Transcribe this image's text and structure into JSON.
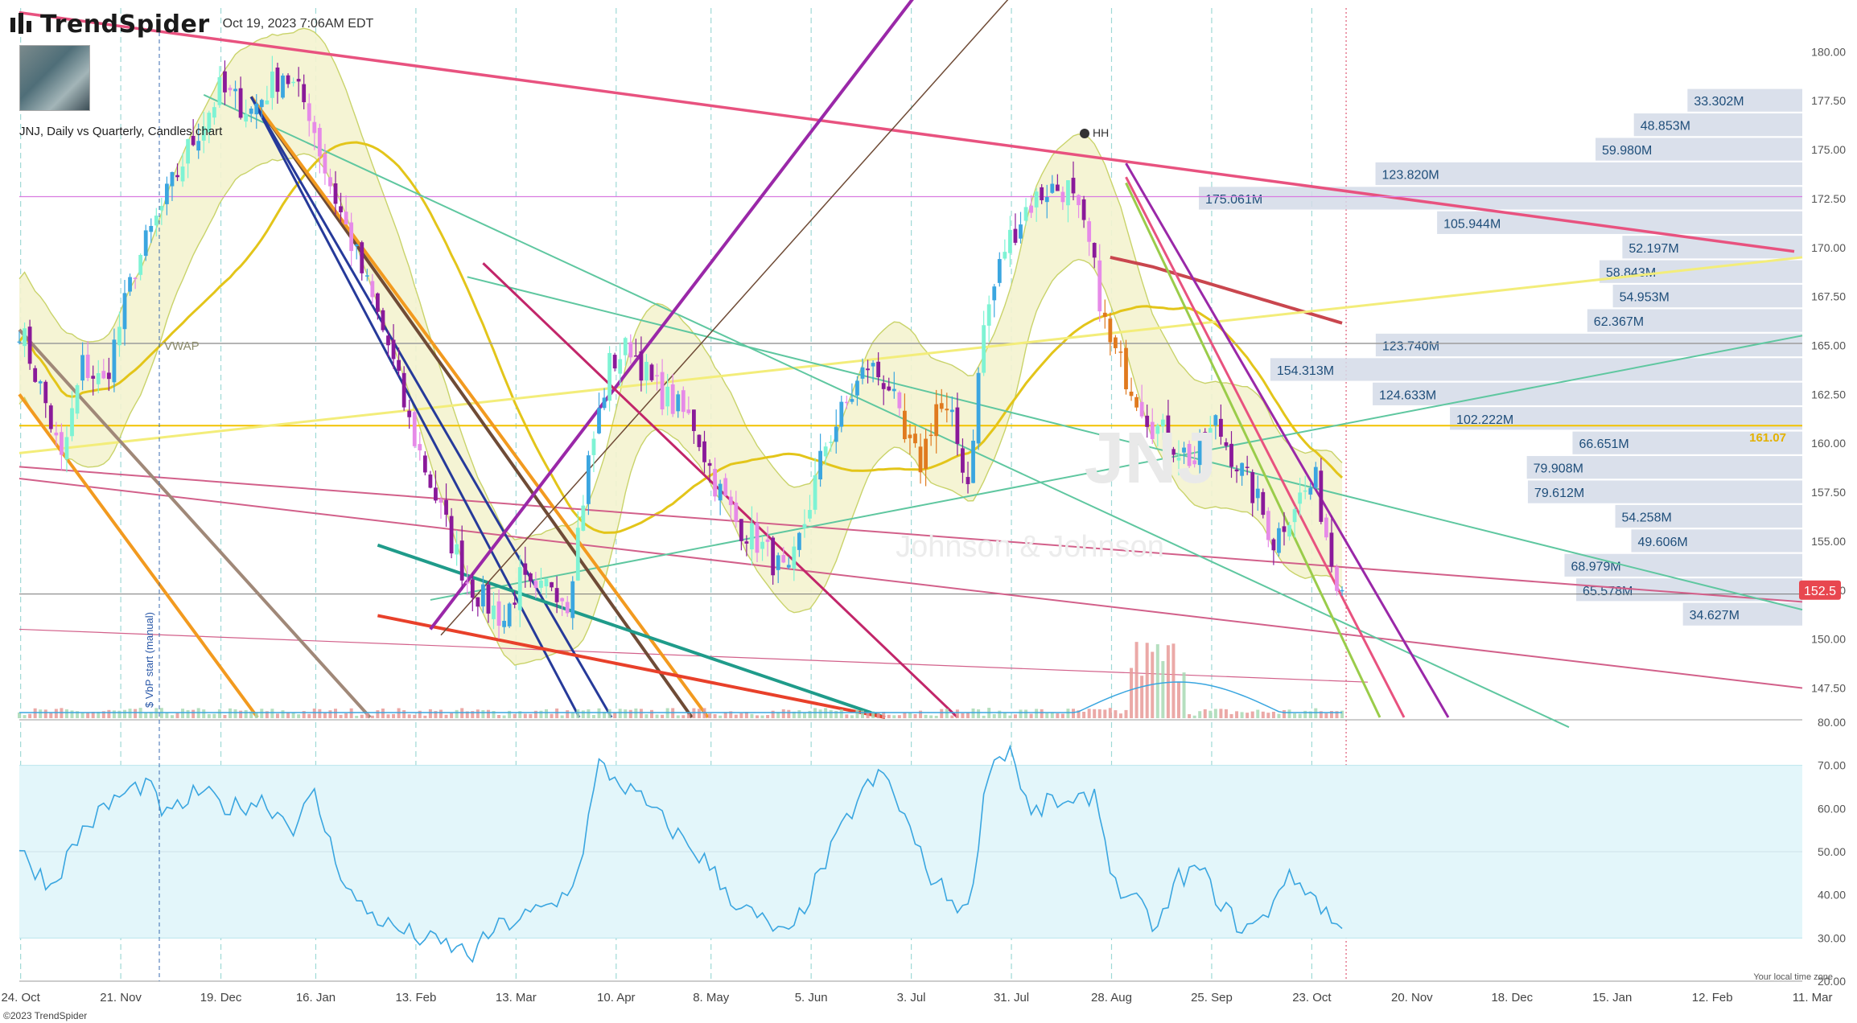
{
  "header": {
    "brand": "TrendSpider",
    "timestamp": "Oct 19, 2023 7:06AM EDT",
    "subtitle": "JNJ, Daily vs Quarterly, Candles chart"
  },
  "footer": {
    "copyright": "©2023 TrendSpider",
    "timezone": "Your local time zone"
  },
  "colors": {
    "up": "#3ba6e0",
    "upLight": "#7ef3d4",
    "down": "#8a1a9a",
    "downLight": "#e68ae8",
    "orange": "#e07a1f",
    "lastPrice": "#e8474f",
    "vpBars": "#d3dbe8",
    "rsi": "#3aa6e0",
    "rsiBand": "#e3f6fa"
  },
  "chart_data": {
    "type": "candlestick",
    "symbol": "JNJ",
    "y_axis": {
      "min": 146,
      "max": 181,
      "ticks": [
        "180.00",
        "177.50",
        "175.00",
        "172.50",
        "170.00",
        "167.50",
        "165.00",
        "162.50",
        "160.00",
        "157.50",
        "155.00",
        "152.50",
        "150.00",
        "147.50"
      ]
    },
    "x_labels": [
      {
        "i": 3,
        "label": "24. Oct"
      },
      {
        "i": 22,
        "label": "21. Nov"
      },
      {
        "i": 41,
        "label": "19. Dec"
      },
      {
        "i": 59,
        "label": "16. Jan"
      },
      {
        "i": 78,
        "label": "13. Feb"
      },
      {
        "i": 97,
        "label": "13. Mar"
      },
      {
        "i": 116,
        "label": "10. Apr"
      },
      {
        "i": 134,
        "label": "8. May"
      },
      {
        "i": 153,
        "label": "5. Jun"
      },
      {
        "i": 172,
        "label": "3. Jul"
      },
      {
        "i": 191,
        "label": "31. Jul"
      },
      {
        "i": 210,
        "label": "28. Aug"
      },
      {
        "i": 229,
        "label": "25. Sep"
      },
      {
        "i": 248,
        "label": "23. Oct"
      },
      {
        "i": 267,
        "label": "20. Nov"
      },
      {
        "i": 286,
        "label": "18. Dec"
      },
      {
        "i": 305,
        "label": "15. Jan"
      },
      {
        "i": 324,
        "label": "12. Feb"
      },
      {
        "i": 343,
        "label": "11. Mar"
      }
    ],
    "bar_count": 275,
    "close_anchors": [
      [
        0,
        166
      ],
      [
        5,
        162
      ],
      [
        8,
        159
      ],
      [
        12,
        164
      ],
      [
        16,
        163
      ],
      [
        22,
        169
      ],
      [
        27,
        172
      ],
      [
        32,
        175
      ],
      [
        38,
        178
      ],
      [
        44,
        177
      ],
      [
        50,
        179
      ],
      [
        55,
        177
      ],
      [
        58,
        174
      ],
      [
        62,
        171
      ],
      [
        66,
        168
      ],
      [
        70,
        165
      ],
      [
        74,
        161
      ],
      [
        78,
        158
      ],
      [
        82,
        155
      ],
      [
        85,
        153
      ],
      [
        88,
        152
      ],
      [
        92,
        151
      ],
      [
        95,
        153
      ],
      [
        98,
        152
      ],
      [
        101,
        153
      ],
      [
        104,
        152
      ],
      [
        108,
        159
      ],
      [
        112,
        164
      ],
      [
        116,
        165
      ],
      [
        120,
        163
      ],
      [
        124,
        162
      ],
      [
        128,
        161
      ],
      [
        132,
        158
      ],
      [
        136,
        156
      ],
      [
        140,
        155
      ],
      [
        143,
        154
      ],
      [
        146,
        153
      ],
      [
        150,
        157
      ],
      [
        153,
        160
      ],
      [
        157,
        162
      ],
      [
        161,
        164
      ],
      [
        165,
        163
      ],
      [
        168,
        160
      ],
      [
        171,
        159
      ],
      [
        174,
        162
      ],
      [
        177,
        161
      ],
      [
        180,
        158
      ],
      [
        183,
        166
      ],
      [
        187,
        170
      ],
      [
        191,
        172
      ],
      [
        195,
        173
      ],
      [
        199,
        173
      ],
      [
        203,
        170
      ],
      [
        207,
        165
      ],
      [
        211,
        163
      ],
      [
        215,
        161
      ],
      [
        219,
        160
      ],
      [
        223,
        159
      ],
      [
        227,
        161
      ],
      [
        231,
        159
      ],
      [
        235,
        157
      ],
      [
        238,
        155
      ],
      [
        242,
        157
      ],
      [
        246,
        158
      ],
      [
        249,
        154
      ],
      [
        251,
        152.5
      ]
    ],
    "last_price": "152.5",
    "volume_profile": [
      {
        "price": 177.5,
        "label": "33.302M",
        "value": 33.302
      },
      {
        "price": 176.25,
        "label": "48.853M",
        "value": 48.853
      },
      {
        "price": 175.0,
        "label": "59.980M",
        "value": 59.98
      },
      {
        "price": 173.75,
        "label": "123.820M",
        "value": 123.82
      },
      {
        "price": 172.5,
        "label": "175.061M",
        "value": 175.061
      },
      {
        "price": 171.25,
        "label": "105.944M",
        "value": 105.944
      },
      {
        "price": 170.0,
        "label": "52.197M",
        "value": 52.197
      },
      {
        "price": 168.75,
        "label": "58.843M",
        "value": 58.843
      },
      {
        "price": 167.5,
        "label": "54.953M",
        "value": 54.953
      },
      {
        "price": 166.25,
        "label": "62.367M",
        "value": 62.367
      },
      {
        "price": 165.0,
        "label": "123.740M",
        "value": 123.74
      },
      {
        "price": 163.75,
        "label": "154.313M",
        "value": 154.313
      },
      {
        "price": 162.5,
        "label": "124.633M",
        "value": 124.633
      },
      {
        "price": 161.25,
        "label": "102.222M",
        "value": 102.222
      },
      {
        "price": 160.0,
        "label": "66.651M",
        "value": 66.651
      },
      {
        "price": 158.75,
        "label": "79.908M",
        "value": 79.908
      },
      {
        "price": 157.5,
        "label": "79.612M",
        "value": 79.612
      },
      {
        "price": 156.25,
        "label": "54.258M",
        "value": 54.258
      },
      {
        "price": 155.0,
        "label": "49.606M",
        "value": 49.606
      },
      {
        "price": 153.75,
        "label": "68.979M",
        "value": 68.979
      },
      {
        "price": 152.5,
        "label": "65.578M",
        "value": 65.578
      },
      {
        "price": 151.25,
        "label": "34.627M",
        "value": 34.627
      }
    ],
    "annotations": {
      "vwap": "VWAP",
      "hh": "HH",
      "horizontal_level": "161.07",
      "vbp_start": "$ VbP start (manual)",
      "watermark_ticker": "JNJ",
      "watermark_name": "Johnson & Johnson"
    },
    "rsi": {
      "ticks": [
        "80.00",
        "70.00",
        "60.00",
        "50.00",
        "40.00",
        "30.00",
        "20.00"
      ],
      "band": [
        30,
        70
      ],
      "anchors": [
        [
          0,
          50
        ],
        [
          6,
          42
        ],
        [
          12,
          55
        ],
        [
          18,
          62
        ],
        [
          24,
          66
        ],
        [
          28,
          58
        ],
        [
          34,
          64
        ],
        [
          40,
          60
        ],
        [
          46,
          62
        ],
        [
          52,
          56
        ],
        [
          56,
          63
        ],
        [
          60,
          48
        ],
        [
          64,
          38
        ],
        [
          70,
          33
        ],
        [
          76,
          30
        ],
        [
          82,
          28
        ],
        [
          86,
          26
        ],
        [
          90,
          32
        ],
        [
          96,
          35
        ],
        [
          102,
          38
        ],
        [
          106,
          45
        ],
        [
          110,
          70
        ],
        [
          114,
          66
        ],
        [
          118,
          62
        ],
        [
          124,
          55
        ],
        [
          130,
          48
        ],
        [
          136,
          38
        ],
        [
          142,
          33
        ],
        [
          146,
          30
        ],
        [
          150,
          40
        ],
        [
          156,
          55
        ],
        [
          160,
          64
        ],
        [
          164,
          68
        ],
        [
          168,
          58
        ],
        [
          172,
          46
        ],
        [
          176,
          40
        ],
        [
          180,
          36
        ],
        [
          184,
          70
        ],
        [
          188,
          74
        ],
        [
          192,
          58
        ],
        [
          196,
          62
        ],
        [
          200,
          60
        ],
        [
          204,
          64
        ],
        [
          208,
          42
        ],
        [
          212,
          38
        ],
        [
          216,
          32
        ],
        [
          220,
          44
        ],
        [
          224,
          46
        ],
        [
          228,
          38
        ],
        [
          232,
          32
        ],
        [
          236,
          34
        ],
        [
          240,
          44
        ],
        [
          244,
          42
        ],
        [
          248,
          36
        ],
        [
          251,
          31
        ]
      ]
    }
  }
}
